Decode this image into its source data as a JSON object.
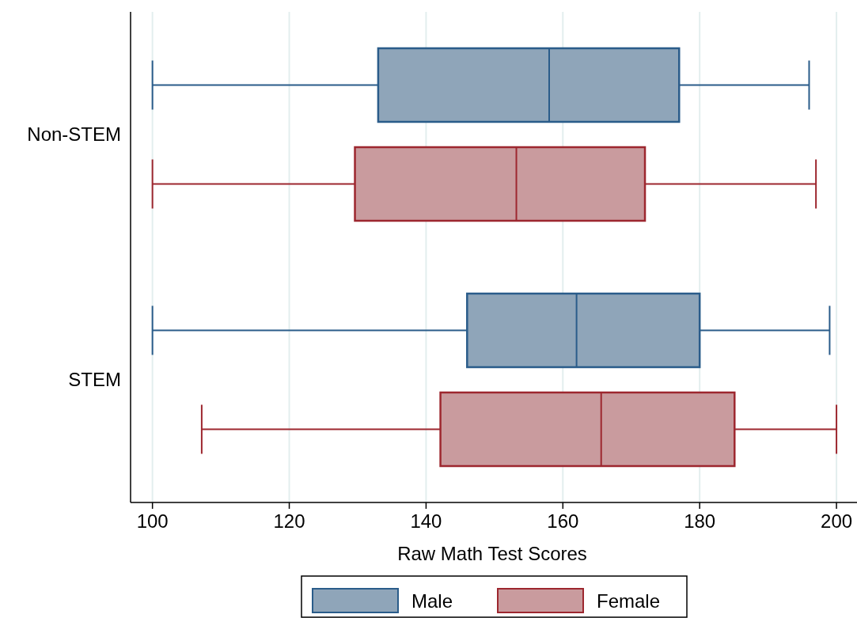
{
  "chart_data": {
    "type": "box",
    "orientation": "horizontal",
    "xlabel": "Raw Math Test Scores",
    "categories": [
      "Non-STEM",
      "STEM"
    ],
    "xlim": [
      96.8,
      203
    ],
    "xticks": [
      100,
      120,
      140,
      160,
      180,
      200
    ],
    "grid": "x",
    "legend": "bottom",
    "series": [
      {
        "name": "Male",
        "color": "#8fa5b9",
        "boxes": [
          {
            "low": 100,
            "q1": 133,
            "median": 158,
            "q3": 177,
            "high": 196
          },
          {
            "low": 100,
            "q1": 146,
            "median": 162,
            "q3": 180,
            "high": 199
          }
        ]
      },
      {
        "name": "Female",
        "color": "#c99b9e",
        "boxes": [
          {
            "low": 100,
            "q1": 129.6,
            "median": 153.2,
            "q3": 172,
            "high": 197
          },
          {
            "low": 107.2,
            "q1": 142.1,
            "median": 165.6,
            "q3": 185.1,
            "high": 200
          }
        ]
      }
    ]
  }
}
